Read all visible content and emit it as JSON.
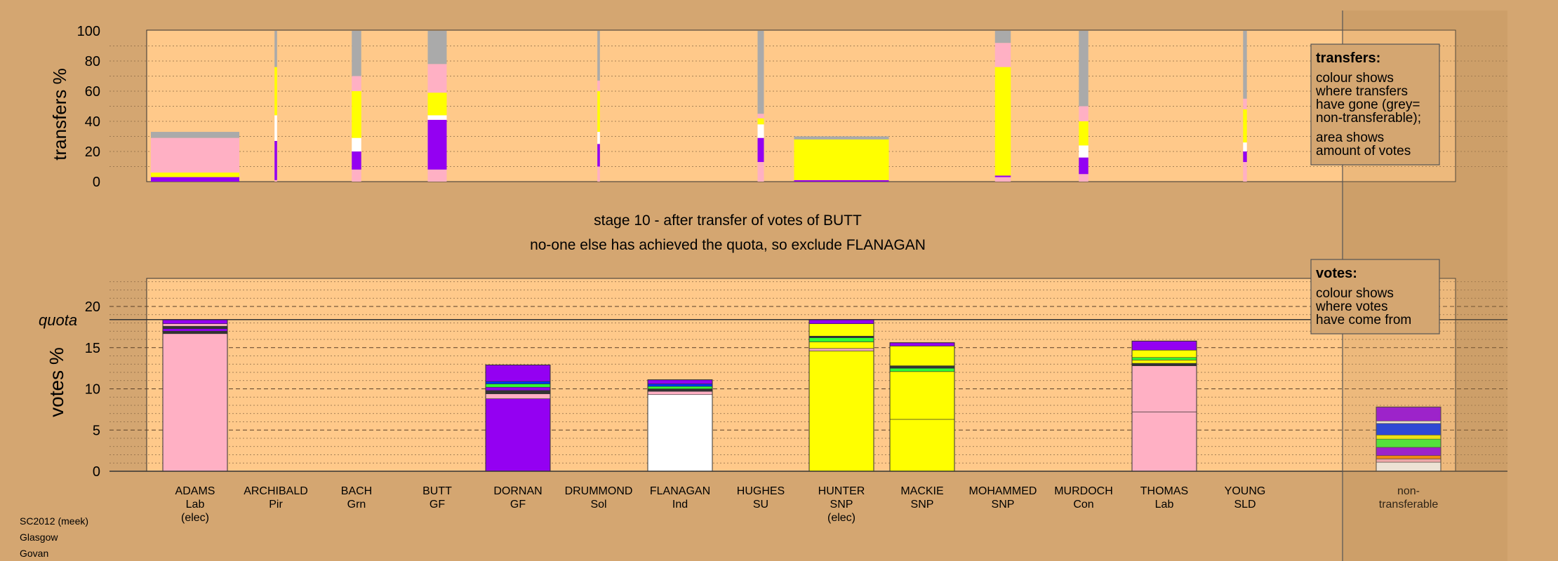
{
  "status": {
    "stage_line": "stage 10 - after transfer of votes of BUTT",
    "action_line": "no-one else has achieved the quota, so exclude FLANAGAN"
  },
  "footer": [
    "SC2012 (meek)",
    "Glasgow",
    "Govan"
  ],
  "legends": {
    "transfers": {
      "title": "transfers:",
      "lines": [
        "colour shows",
        "where transfers",
        "have gone (grey=",
        "non-transferable);"
      ],
      "lines2": [
        "area shows",
        "amount of votes"
      ]
    },
    "votes": {
      "title": "votes:",
      "lines": [
        "colour shows",
        "where votes",
        "have come from"
      ]
    }
  },
  "colors": {
    "background": "#d4a671",
    "plot": "#ffc98a",
    "Lab": "#ffb0c4",
    "GF": "#9400f2",
    "SNP": "#ffff00",
    "Ind": "#ffffff",
    "green": "#33ff33",
    "blue": "#0033ff",
    "orange": "#ff8800",
    "grey": "#aaaaaa",
    "dark": "#333333"
  },
  "candidates": [
    {
      "name": "ADAMS",
      "party": "Lab",
      "status": "(elec)"
    },
    {
      "name": "ARCHIBALD",
      "party": "Pir",
      "status": ""
    },
    {
      "name": "BACH",
      "party": "Grn",
      "status": ""
    },
    {
      "name": "BUTT",
      "party": "GF",
      "status": ""
    },
    {
      "name": "DORNAN",
      "party": "GF",
      "status": ""
    },
    {
      "name": "DRUMMOND",
      "party": "Sol",
      "status": ""
    },
    {
      "name": "FLANAGAN",
      "party": "Ind",
      "status": ""
    },
    {
      "name": "HUGHES",
      "party": "SU",
      "status": ""
    },
    {
      "name": "HUNTER",
      "party": "SNP",
      "status": "(elec)"
    },
    {
      "name": "MACKIE",
      "party": "SNP",
      "status": ""
    },
    {
      "name": "MOHAMMED",
      "party": "SNP",
      "status": ""
    },
    {
      "name": "MURDOCH",
      "party": "Con",
      "status": ""
    },
    {
      "name": "THOMAS",
      "party": "Lab",
      "status": ""
    },
    {
      "name": "YOUNG",
      "party": "SLD",
      "status": ""
    }
  ],
  "nontransferable_label": [
    "non-",
    "transferable"
  ],
  "chart_data": [
    {
      "type": "bar",
      "title": "",
      "ylabel": "transfers %",
      "ylim": [
        0,
        100
      ],
      "yticks": [
        0,
        20,
        40,
        60,
        80,
        100
      ],
      "grid": true,
      "legend": "top-right",
      "note": "stacked transfer bars; width proportional to votes transferred",
      "bars": [
        {
          "candidate": "ADAMS",
          "width": 14,
          "segments": [
            {
              "color": "GF",
              "value": 3
            },
            {
              "color": "SNP",
              "value": 3
            },
            {
              "color": "Lab",
              "value": 23
            },
            {
              "color": "grey",
              "value": 4
            }
          ]
        },
        {
          "candidate": "ARCHIBALD",
          "width": 0.4,
          "segments": [
            {
              "color": "Lab",
              "value": 1
            },
            {
              "color": "GF",
              "value": 26
            },
            {
              "color": "Ind",
              "value": 17
            },
            {
              "color": "SNP",
              "value": 32
            },
            {
              "color": "grey",
              "value": 24
            }
          ]
        },
        {
          "candidate": "BACH",
          "width": 1.5,
          "segments": [
            {
              "color": "Lab",
              "value": 8
            },
            {
              "color": "GF",
              "value": 12
            },
            {
              "color": "Ind",
              "value": 9
            },
            {
              "color": "SNP",
              "value": 31
            },
            {
              "color": "Lab",
              "value": 10
            },
            {
              "color": "grey",
              "value": 30
            }
          ]
        },
        {
          "candidate": "BUTT",
          "width": 3,
          "segments": [
            {
              "color": "Lab",
              "value": 8
            },
            {
              "color": "GF",
              "value": 33
            },
            {
              "color": "Ind",
              "value": 3
            },
            {
              "color": "SNP",
              "value": 15
            },
            {
              "color": "Lab",
              "value": 19
            },
            {
              "color": "grey",
              "value": 22
            }
          ]
        },
        {
          "candidate": "DRUMMOND",
          "width": 0.4,
          "segments": [
            {
              "color": "Lab",
              "value": 10
            },
            {
              "color": "GF",
              "value": 15
            },
            {
              "color": "Ind",
              "value": 8
            },
            {
              "color": "SNP",
              "value": 27
            },
            {
              "color": "Lab",
              "value": 7
            },
            {
              "color": "grey",
              "value": 33
            }
          ]
        },
        {
          "candidate": "HUGHES",
          "width": 1,
          "segments": [
            {
              "color": "Lab",
              "value": 13
            },
            {
              "color": "GF",
              "value": 16
            },
            {
              "color": "Ind",
              "value": 9
            },
            {
              "color": "SNP",
              "value": 4
            },
            {
              "color": "Lab",
              "value": 3
            },
            {
              "color": "grey",
              "value": 55
            }
          ]
        },
        {
          "candidate": "HUNTER",
          "width": 15,
          "segments": [
            {
              "color": "GF",
              "value": 1
            },
            {
              "color": "SNP",
              "value": 27
            },
            {
              "color": "grey",
              "value": 2
            }
          ]
        },
        {
          "candidate": "MOHAMMED",
          "width": 2.5,
          "segments": [
            {
              "color": "Lab",
              "value": 3
            },
            {
              "color": "GF",
              "value": 1
            },
            {
              "color": "SNP",
              "value": 72
            },
            {
              "color": "Lab",
              "value": 16
            },
            {
              "color": "grey",
              "value": 8
            }
          ]
        },
        {
          "candidate": "MURDOCH",
          "width": 1.5,
          "segments": [
            {
              "color": "Lab",
              "value": 5
            },
            {
              "color": "GF",
              "value": 11
            },
            {
              "color": "Ind",
              "value": 8
            },
            {
              "color": "SNP",
              "value": 16
            },
            {
              "color": "Lab",
              "value": 10
            },
            {
              "color": "grey",
              "value": 50
            }
          ]
        },
        {
          "candidate": "YOUNG",
          "width": 0.6,
          "segments": [
            {
              "color": "Lab",
              "value": 13
            },
            {
              "color": "GF",
              "value": 7
            },
            {
              "color": "Ind",
              "value": 6
            },
            {
              "color": "SNP",
              "value": 22
            },
            {
              "color": "Lab",
              "value": 7
            },
            {
              "color": "grey",
              "value": 45
            }
          ]
        }
      ]
    },
    {
      "type": "bar",
      "title": "",
      "ylabel": "votes %",
      "ylim": [
        0,
        23
      ],
      "yticks": [
        0,
        5,
        10,
        15,
        20
      ],
      "quota": 18.4,
      "quota_label": "quota",
      "grid": true,
      "legend": "top-right",
      "bars": [
        {
          "candidate": "ADAMS",
          "total": 18.4,
          "segments": [
            {
              "color": "Lab",
              "value": 16.7
            },
            {
              "color": "dark",
              "value": 0.3
            },
            {
              "color": "GF",
              "value": 0.3
            },
            {
              "color": "dark",
              "value": 0.3
            },
            {
              "color": "Lab",
              "value": 0.3
            },
            {
              "color": "GF",
              "value": 0.5
            }
          ]
        },
        {
          "candidate": "DORNAN",
          "total": 12.9,
          "segments": [
            {
              "color": "GF",
              "value": 8.8
            },
            {
              "color": "Lab",
              "value": 0.6
            },
            {
              "color": "dark",
              "value": 0.4
            },
            {
              "color": "GF",
              "value": 0.4
            },
            {
              "color": "green",
              "value": 0.4
            },
            {
              "color": "blue",
              "value": 0.3
            },
            {
              "color": "GF",
              "value": 2.0
            }
          ]
        },
        {
          "candidate": "FLANAGAN",
          "total": 11.1,
          "segments": [
            {
              "color": "Ind",
              "value": 9.3
            },
            {
              "color": "Lab",
              "value": 0.4
            },
            {
              "color": "dark",
              "value": 0.3
            },
            {
              "color": "green",
              "value": 0.3
            },
            {
              "color": "blue",
              "value": 0.3
            },
            {
              "color": "GF",
              "value": 0.5
            }
          ]
        },
        {
          "candidate": "HUNTER",
          "total": 18.4,
          "segments": [
            {
              "color": "SNP",
              "value": 14.6
            },
            {
              "color": "Lab",
              "value": 0.3
            },
            {
              "color": "SNP",
              "value": 0.8
            },
            {
              "color": "green",
              "value": 0.5
            },
            {
              "color": "dark",
              "value": 0.2
            },
            {
              "color": "SNP",
              "value": 1.5
            },
            {
              "color": "GF",
              "value": 0.5
            }
          ]
        },
        {
          "candidate": "MACKIE",
          "total": 15.6,
          "segments": [
            {
              "color": "SNP",
              "value": 6.3
            },
            {
              "color": "SNP",
              "value": 5.8
            },
            {
              "color": "green",
              "value": 0.4
            },
            {
              "color": "dark",
              "value": 0.3
            },
            {
              "color": "SNP",
              "value": 2.4
            },
            {
              "color": "GF",
              "value": 0.4
            }
          ]
        },
        {
          "candidate": "THOMAS",
          "total": 15.8,
          "segments": [
            {
              "color": "Lab",
              "value": 7.2
            },
            {
              "color": "Lab",
              "value": 5.6
            },
            {
              "color": "dark",
              "value": 0.3
            },
            {
              "color": "SNP",
              "value": 0.4
            },
            {
              "color": "green",
              "value": 0.3
            },
            {
              "color": "SNP",
              "value": 0.9
            },
            {
              "color": "GF",
              "value": 1.1
            }
          ]
        },
        {
          "candidate": "non-transferable",
          "total": 7.8,
          "segments": [
            {
              "color": "Ind",
              "value": 1.1
            },
            {
              "color": "Lab",
              "value": 0.4
            },
            {
              "color": "orange",
              "value": 0.4
            },
            {
              "color": "GF",
              "value": 1.0
            },
            {
              "color": "green",
              "value": 1.0
            },
            {
              "color": "SNP",
              "value": 0.5
            },
            {
              "color": "blue",
              "value": 1.4
            },
            {
              "color": "Ind",
              "value": 0.3
            },
            {
              "color": "GF",
              "value": 1.7
            }
          ]
        }
      ]
    }
  ]
}
